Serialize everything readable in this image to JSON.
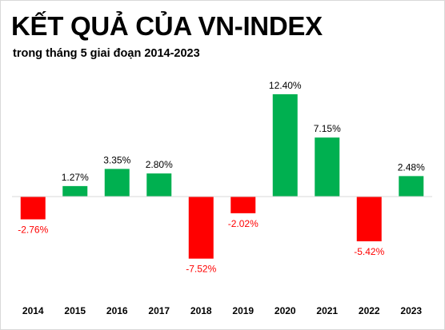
{
  "header": {
    "title": "KẾT QUẢ CỦA VN-INDEX",
    "subtitle": "trong tháng 5 giai đoạn 2014-2023"
  },
  "colors": {
    "positive": "#00b050",
    "negative": "#ff0000",
    "positive_label": "#000000",
    "negative_label": "#ff0000",
    "zero_line": "#d9d9d9"
  },
  "chart_data": {
    "type": "bar",
    "title": "KẾT QUẢ CỦA VN-INDEX",
    "subtitle": "trong tháng 5 giai đoạn 2014-2023",
    "xlabel": "",
    "ylabel": "",
    "categories": [
      "2014",
      "2015",
      "2016",
      "2017",
      "2018",
      "2019",
      "2020",
      "2021",
      "2022",
      "2023"
    ],
    "values": [
      -2.76,
      1.27,
      3.35,
      2.8,
      -7.52,
      -2.02,
      12.4,
      7.15,
      -5.42,
      2.48
    ],
    "value_labels": [
      "-2.76%",
      "1.27%",
      "3.35%",
      "2.80%",
      "-7.52%",
      "-2.02%",
      "12.40%",
      "7.15%",
      "-5.42%",
      "2.48%"
    ],
    "ylim": [
      -8.5,
      13.5
    ],
    "grid": false,
    "legend": "none"
  }
}
